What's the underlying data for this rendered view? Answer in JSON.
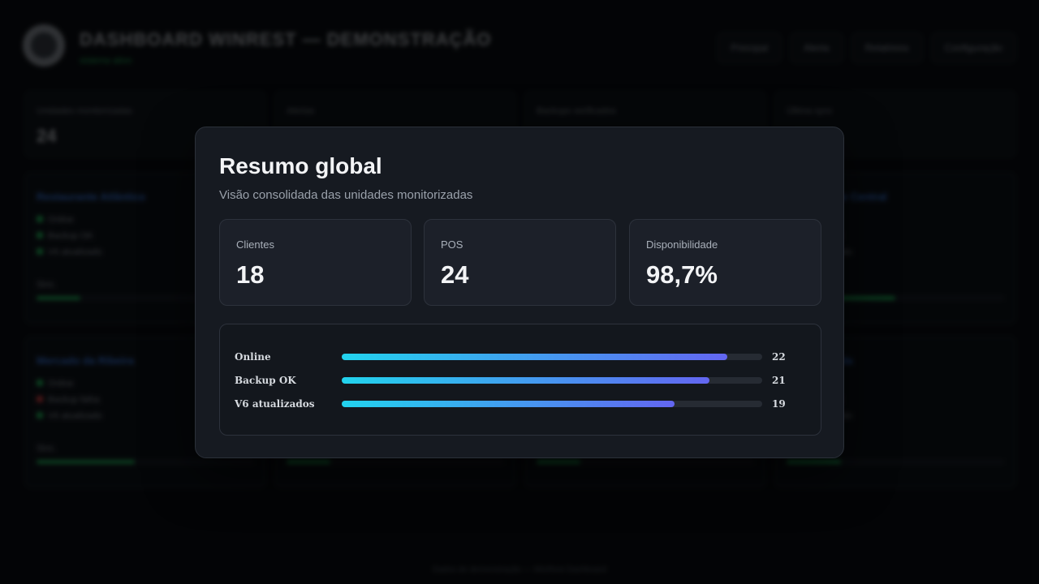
{
  "background": {
    "app_title": "DASHBOARD WINREST — DEMONSTRAÇÃO",
    "app_status": "sistema ativo",
    "nav": [
      "Principal",
      "Alerta",
      "Relatórios",
      "Configuração"
    ],
    "kpis": [
      {
        "label": "Unidades monitorizadas",
        "value": "24"
      },
      {
        "label": "Alertas",
        "value": ""
      },
      {
        "label": "Backups verificados",
        "value": ""
      },
      {
        "label": "Última sync",
        "value": ""
      }
    ],
    "cards": [
      {
        "title": "Restaurante Atlântico",
        "rows": [
          "Online",
          "Backup OK",
          "V6 atualizado"
        ],
        "footer": "Sinc.",
        "fill": 0.2
      },
      {
        "title": "",
        "rows": [],
        "footer": "",
        "fill": 0
      },
      {
        "title": "",
        "rows": [],
        "footer": "",
        "fill": 0
      },
      {
        "title": "Restaurante Central",
        "rows": [
          "Online",
          "Backup OK",
          "V6 atualizado"
        ],
        "footer": "Sinc.",
        "fill": 0.5
      },
      {
        "title": "Mercado da Ribeira",
        "rows": [
          "Online",
          "Backup falha",
          "V6 atualizado"
        ],
        "footer": "Sinc.",
        "fill": 0.45
      },
      {
        "title": "",
        "rows": [],
        "footer": "",
        "fill": 0.2
      },
      {
        "title": "",
        "rows": [],
        "footer": "",
        "fill": 0.2
      },
      {
        "title": "Café Avenida",
        "rows": [
          "Online",
          "Backup OK",
          "V6 atualizado"
        ],
        "footer": "Sinc.",
        "fill": 0.25
      }
    ],
    "footer": "Dados de demonstração — WinRest Dashboard"
  },
  "modal": {
    "title": "Resumo global",
    "subtitle": "Visão consolidada das unidades monitorizadas",
    "stats": [
      {
        "label": "Clientes",
        "value": "18"
      },
      {
        "label": "POS",
        "value": "24"
      },
      {
        "label": "Disponibilidade",
        "value": "98,7%"
      }
    ],
    "bars": {
      "max": 24,
      "rows": [
        {
          "label": "Online",
          "value": 22
        },
        {
          "label": "Backup OK",
          "value": 21
        },
        {
          "label": "V6 atualizados",
          "value": 19
        }
      ]
    }
  },
  "colors": {
    "accent_start": "#22d3ee",
    "accent_end": "#6366f1",
    "ok": "#22c55e",
    "fail": "#ef4444"
  }
}
